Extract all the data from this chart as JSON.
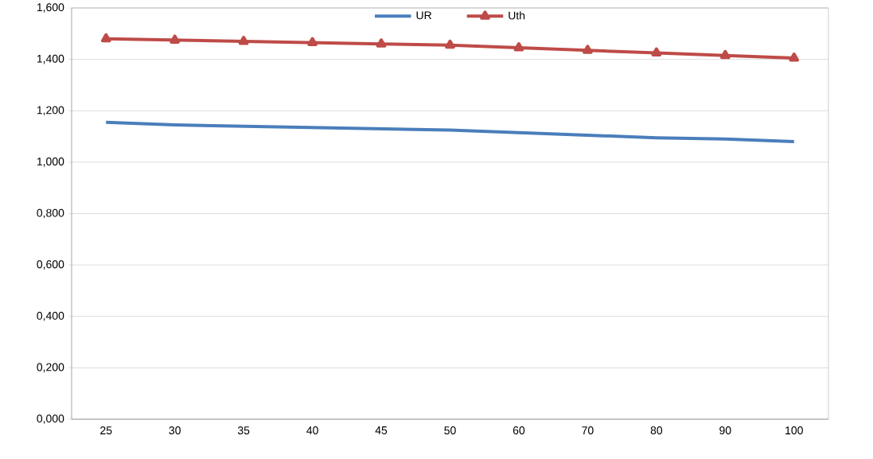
{
  "chart_data": {
    "type": "line",
    "categories": [
      "25",
      "30",
      "35",
      "40",
      "45",
      "50",
      "60",
      "70",
      "80",
      "90",
      "100"
    ],
    "series": [
      {
        "name": "UR",
        "color": "#4a7ebb",
        "marker": "none",
        "values": [
          1.155,
          1.145,
          1.14,
          1.135,
          1.13,
          1.125,
          1.115,
          1.105,
          1.095,
          1.09,
          1.08
        ]
      },
      {
        "name": "Uth",
        "color": "#be4b48",
        "marker": "triangle",
        "values": [
          1.48,
          1.475,
          1.47,
          1.465,
          1.46,
          1.455,
          1.445,
          1.435,
          1.425,
          1.415,
          1.405
        ]
      }
    ],
    "ylim": [
      0,
      1.6
    ],
    "yticks": [
      {
        "value": 0,
        "label": "0,000"
      },
      {
        "value": 0.2,
        "label": "0,200"
      },
      {
        "value": 0.4,
        "label": "0,400"
      },
      {
        "value": 0.6,
        "label": "0,600"
      },
      {
        "value": 0.8,
        "label": "0,800"
      },
      {
        "value": 1.0,
        "label": "1,000"
      },
      {
        "value": 1.2,
        "label": "1,200"
      },
      {
        "value": 1.4,
        "label": "1,400"
      },
      {
        "value": 1.6,
        "label": "1,600"
      }
    ],
    "grid": "y",
    "legend": "top"
  }
}
